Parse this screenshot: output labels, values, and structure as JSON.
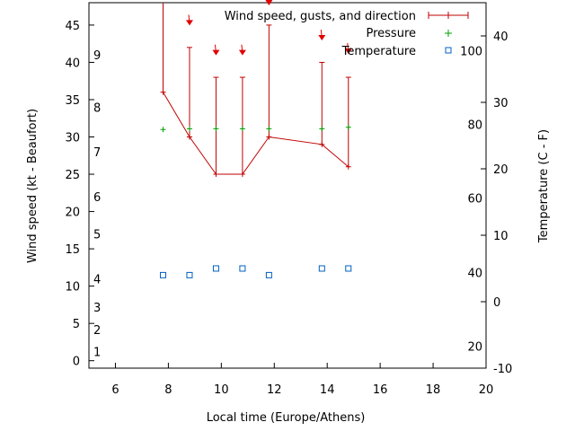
{
  "chart_data": {
    "type": "line",
    "xlabel": "Local time (Europe/Athens)",
    "ylabel_left": "Wind speed (kt - Beaufort)",
    "ylabel_right": "Temperature (C - F)",
    "xlim": [
      5,
      20
    ],
    "x_ticks": [
      6,
      8,
      10,
      12,
      14,
      16,
      18,
      20
    ],
    "y_left_lim": [
      -1,
      48
    ],
    "y_left_ticks": [
      0,
      5,
      10,
      15,
      20,
      25,
      30,
      35,
      40,
      45
    ],
    "y_right_celsius_lim": [
      -10,
      45
    ],
    "y_right_celsius_ticks": [
      -10,
      0,
      10,
      20,
      30,
      40
    ],
    "beaufort_labels": [
      {
        "label": "1",
        "kt": 1.2
      },
      {
        "label": "2",
        "kt": 4.2
      },
      {
        "label": "3",
        "kt": 7.2
      },
      {
        "label": "4",
        "kt": 11
      },
      {
        "label": "5",
        "kt": 17
      },
      {
        "label": "6",
        "kt": 22
      },
      {
        "label": "7",
        "kt": 28
      },
      {
        "label": "8",
        "kt": 34
      },
      {
        "label": "9",
        "kt": 41
      }
    ],
    "fahrenheit_labels": [
      {
        "label": "20",
        "celsius": -6.7
      },
      {
        "label": "40",
        "celsius": 4.4
      },
      {
        "label": "60",
        "celsius": 15.6
      },
      {
        "label": "80",
        "celsius": 26.7
      },
      {
        "label": "100",
        "celsius": 37.8
      }
    ],
    "legend": {
      "placement": "top-right",
      "wind": "Wind speed, gusts, and direction",
      "pressure": "Pressure",
      "temperature": "Temperature"
    },
    "wind_series": {
      "name": "Wind speed, gusts, and direction",
      "color": "#c00000",
      "x": [
        7.8,
        8.8,
        9.8,
        10.8,
        11.8,
        13.8,
        14.8
      ],
      "speed": [
        36,
        30,
        25,
        25,
        30,
        29,
        26
      ],
      "gust": [
        50,
        42,
        38,
        38,
        45,
        40,
        38
      ]
    },
    "wind_arrows": [
      {
        "x": 8.8,
        "kt": 45.3
      },
      {
        "x": 9.8,
        "kt": 41.3
      },
      {
        "x": 10.8,
        "kt": 41.3
      },
      {
        "x": 11.8,
        "kt": 48
      },
      {
        "x": 13.8,
        "kt": 43.3
      },
      {
        "x": 14.8,
        "kt": 41.5
      }
    ],
    "pressure_series": {
      "name": "Pressure",
      "color": "#00a000",
      "x": [
        7.8,
        8.8,
        9.8,
        10.8,
        11.8,
        13.8,
        14.8
      ],
      "values_on_left_axis": [
        31,
        31.1,
        31.1,
        31.1,
        31.1,
        31.1,
        31.3
      ]
    },
    "temperature_series": {
      "name": "Temperature",
      "color": "#0060c0",
      "unit": "C",
      "x": [
        7.8,
        8.8,
        9.8,
        10.8,
        11.8,
        13.8,
        14.8
      ],
      "values": [
        4,
        4,
        5,
        5,
        4,
        5,
        5
      ]
    }
  }
}
